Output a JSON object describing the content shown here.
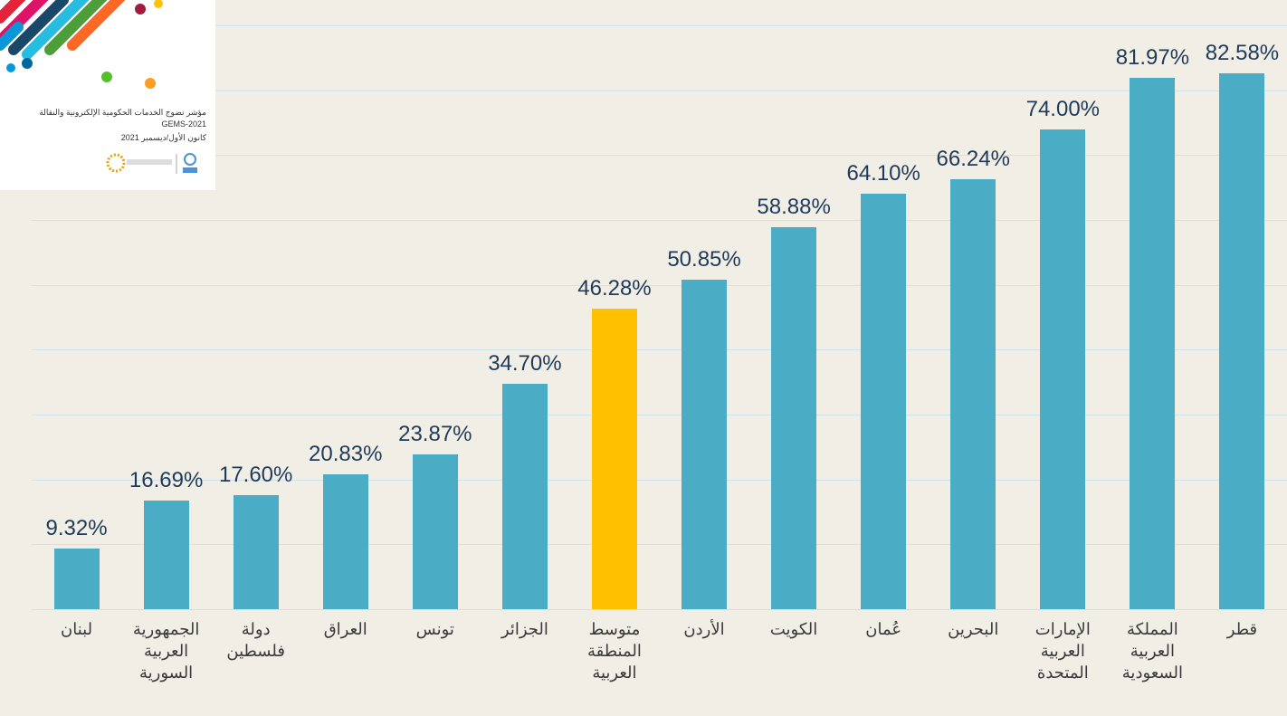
{
  "logo": {
    "title": "مؤشر نضوج الخدمات الحكومية الإلكترونية والنقالة GEMS-2021",
    "date": "كانون الأول/ديسمبر 2021"
  },
  "chart_data": {
    "type": "bar",
    "categories": [
      "لبنان",
      "الجمهورية العربية السورية",
      "دولة فلسطين",
      "العراق",
      "تونس",
      "الجزائر",
      "متوسط المنطقة العربية",
      "الأردن",
      "الكويت",
      "عُمان",
      "البحرين",
      "الإمارات العربية المتحدة",
      "المملكة العربية السعودية",
      "قطر"
    ],
    "values": [
      9.32,
      16.69,
      17.6,
      20.83,
      23.87,
      34.7,
      46.28,
      50.85,
      58.88,
      64.1,
      66.24,
      74,
      81.97,
      82.58
    ],
    "value_labels": [
      "9.32%",
      "16.69%",
      "17.60%",
      "20.83%",
      "23.87%",
      "34.70%",
      "46.28%",
      "50.85%",
      "58.88%",
      "64.10%",
      "66.24%",
      "74.00%",
      "81.97%",
      "82.58%"
    ],
    "colors": [
      "#4bacc6",
      "#4bacc6",
      "#4bacc6",
      "#4bacc6",
      "#4bacc6",
      "#4bacc6",
      "#ffc000",
      "#4bacc6",
      "#4bacc6",
      "#4bacc6",
      "#4bacc6",
      "#4bacc6",
      "#4bacc6",
      "#4bacc6"
    ],
    "ylim": [
      0,
      90
    ],
    "yticks": [
      0,
      10,
      20,
      30,
      40,
      50,
      60,
      70,
      80,
      90
    ],
    "grid": true
  }
}
